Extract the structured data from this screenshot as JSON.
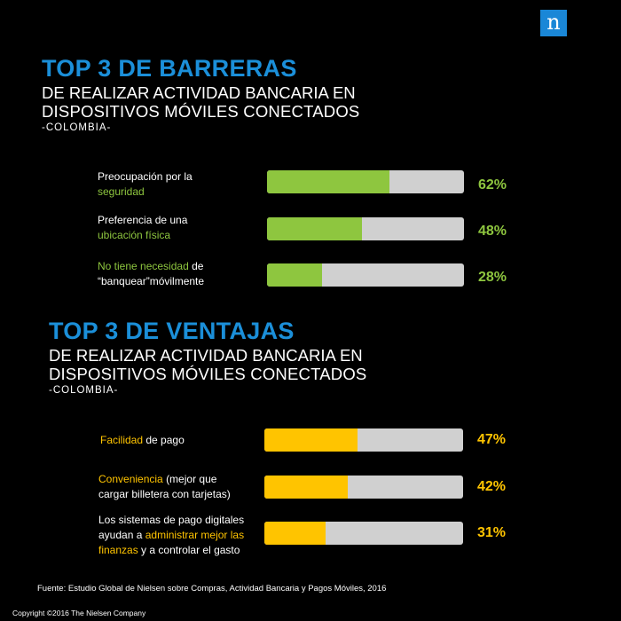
{
  "brand": {
    "logo_letter": "n"
  },
  "section_barreras": {
    "title_line1": "TOP 3 DE BARRERAS",
    "title_line2": "DE REALIZAR ACTIVIDAD BANCARIA EN",
    "title_line3": "DISPOSITIVOS MÓVILES CONECTADOS",
    "title_line4": "-COLOMBIA-",
    "items": [
      {
        "label_parts": [
          "Preocupación por la",
          "seguridad"
        ],
        "value_text": "62%"
      },
      {
        "label_parts": [
          "Preferencia de una",
          "ubicación física"
        ],
        "value_text": "48%"
      },
      {
        "label_parts": [
          "No tiene necesidad",
          "de",
          "“banquear”móvilmente"
        ],
        "value_text": "28%"
      }
    ]
  },
  "section_ventajas": {
    "title_line1": "TOP 3 DE VENTAJAS",
    "title_line2": "DE REALIZAR ACTIVIDAD BANCARIA EN",
    "title_line3": "DISPOSITIVOS MÓVILES CONECTADOS",
    "title_line4": "-COLOMBIA-",
    "items": [
      {
        "label_parts": [
          "Facilidad",
          "de pago"
        ],
        "value_text": "47%"
      },
      {
        "label_parts": [
          "Conveniencia",
          "(mejor que",
          "cargar billetera con tarjetas)"
        ],
        "value_text": "42%"
      },
      {
        "label_parts": [
          "Los sistemas de pago digitales",
          "ayudan a",
          "administrar mejor las",
          "finanzas",
          "y a controlar el gasto"
        ],
        "value_text": "31%"
      }
    ]
  },
  "footer": {
    "source": "Fuente: Estudio Global de Nielsen sobre Compras, Actividad Bancaria y Pagos Móviles, 2016",
    "copyright": "Copyright ©2016 The Nielsen Company"
  },
  "colors": {
    "title_blue": "#1b8fd9",
    "barreras_accent": "#8ec63f",
    "ventajas_accent": "#ffc400",
    "bar_track": "#d0d0d0",
    "background": "#000000"
  },
  "chart_data": [
    {
      "type": "bar",
      "orientation": "horizontal",
      "categories": [
        "Preocupación por la seguridad",
        "Preferencia de una ubicación física",
        "No tiene necesidad de “banquear”móvilmente"
      ],
      "values": [
        62,
        48,
        28
      ],
      "xlim": [
        0,
        100
      ],
      "grid": false
    },
    {
      "type": "bar",
      "orientation": "horizontal",
      "categories": [
        "Facilidad de pago",
        "Conveniencia (mejor que cargar billetera con tarjetas)",
        "Los sistemas de pago digitales ayudan a administrar mejor las finanzas y a controlar el gasto"
      ],
      "values": [
        47,
        42,
        31
      ],
      "xlim": [
        0,
        100
      ],
      "grid": false
    }
  ]
}
